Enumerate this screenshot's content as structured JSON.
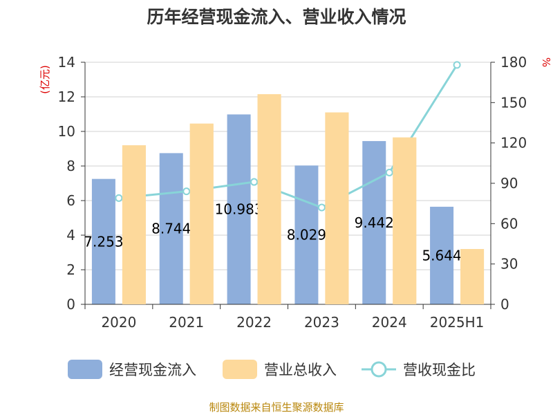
{
  "chart_data": {
    "type": "bar",
    "title": "历年经营现金流入、营业收入情况",
    "categories": [
      "2020",
      "2021",
      "2022",
      "2023",
      "2024",
      "2025H1"
    ],
    "series": [
      {
        "name": "经营现金流入",
        "type": "bar",
        "axis": "left",
        "color": "#8eaedb",
        "values": [
          7.253,
          8.744,
          10.983,
          8.029,
          9.442,
          5.644
        ],
        "labels": [
          "7.253",
          "8.744",
          "10.983",
          "8.029",
          "9.442",
          "5.644"
        ]
      },
      {
        "name": "营业总收入",
        "type": "bar",
        "axis": "left",
        "color": "#fdd99b",
        "values": [
          9.2,
          10.45,
          12.15,
          11.1,
          9.65,
          3.2
        ]
      },
      {
        "name": "营收现金比",
        "type": "line",
        "axis": "right",
        "color": "#88d4d8",
        "values": [
          79,
          84,
          91,
          72,
          98,
          178
        ]
      }
    ],
    "y_left": {
      "unit": "(亿元)",
      "min": 0,
      "max": 14,
      "ticks": [
        0,
        2,
        4,
        6,
        8,
        10,
        12,
        14
      ]
    },
    "y_right": {
      "unit": "%",
      "min": 0,
      "max": 180,
      "ticks": [
        0,
        30,
        60,
        90,
        120,
        150,
        180
      ]
    },
    "grid": true,
    "legend_position": "bottom"
  },
  "source": "制图数据来自恒生聚源数据库"
}
